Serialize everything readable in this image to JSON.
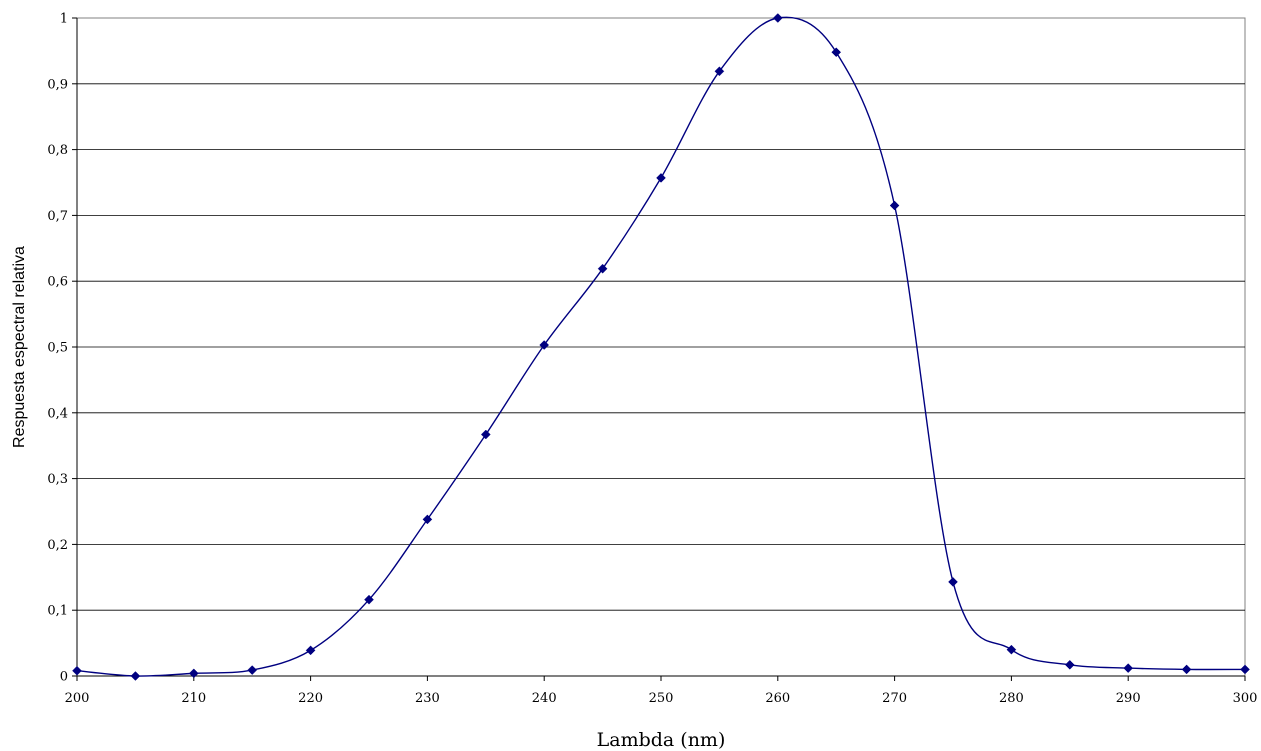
{
  "chart_data": {
    "type": "line",
    "title": "",
    "xlabel": "Lambda (nm)",
    "ylabel": "Respuesta espectral relativa",
    "xlim": [
      200,
      300
    ],
    "ylim": [
      0,
      1
    ],
    "x_ticks": [
      "200",
      "210",
      "220",
      "230",
      "240",
      "250",
      "260",
      "270",
      "280",
      "290",
      "300"
    ],
    "y_ticks": [
      "0",
      "0,1",
      "0,2",
      "0,3",
      "0,4",
      "0,5",
      "0,6",
      "0,7",
      "0,8",
      "0,9",
      "1"
    ],
    "grid": "horizontal",
    "legend": "none",
    "smooth": true,
    "series": [
      {
        "color": "#000080",
        "marker": "diamond",
        "x": [
          200,
          205,
          210,
          215,
          220,
          225,
          230,
          235,
          240,
          245,
          250,
          255,
          260,
          265,
          270,
          275,
          280,
          285,
          290,
          295,
          300
        ],
        "y": [
          0.008,
          0.0,
          0.004,
          0.009,
          0.039,
          0.116,
          0.238,
          0.367,
          0.503,
          0.619,
          0.757,
          0.919,
          1.0,
          0.948,
          0.715,
          0.143,
          0.04,
          0.017,
          0.012,
          0.01,
          0.01
        ]
      }
    ]
  }
}
